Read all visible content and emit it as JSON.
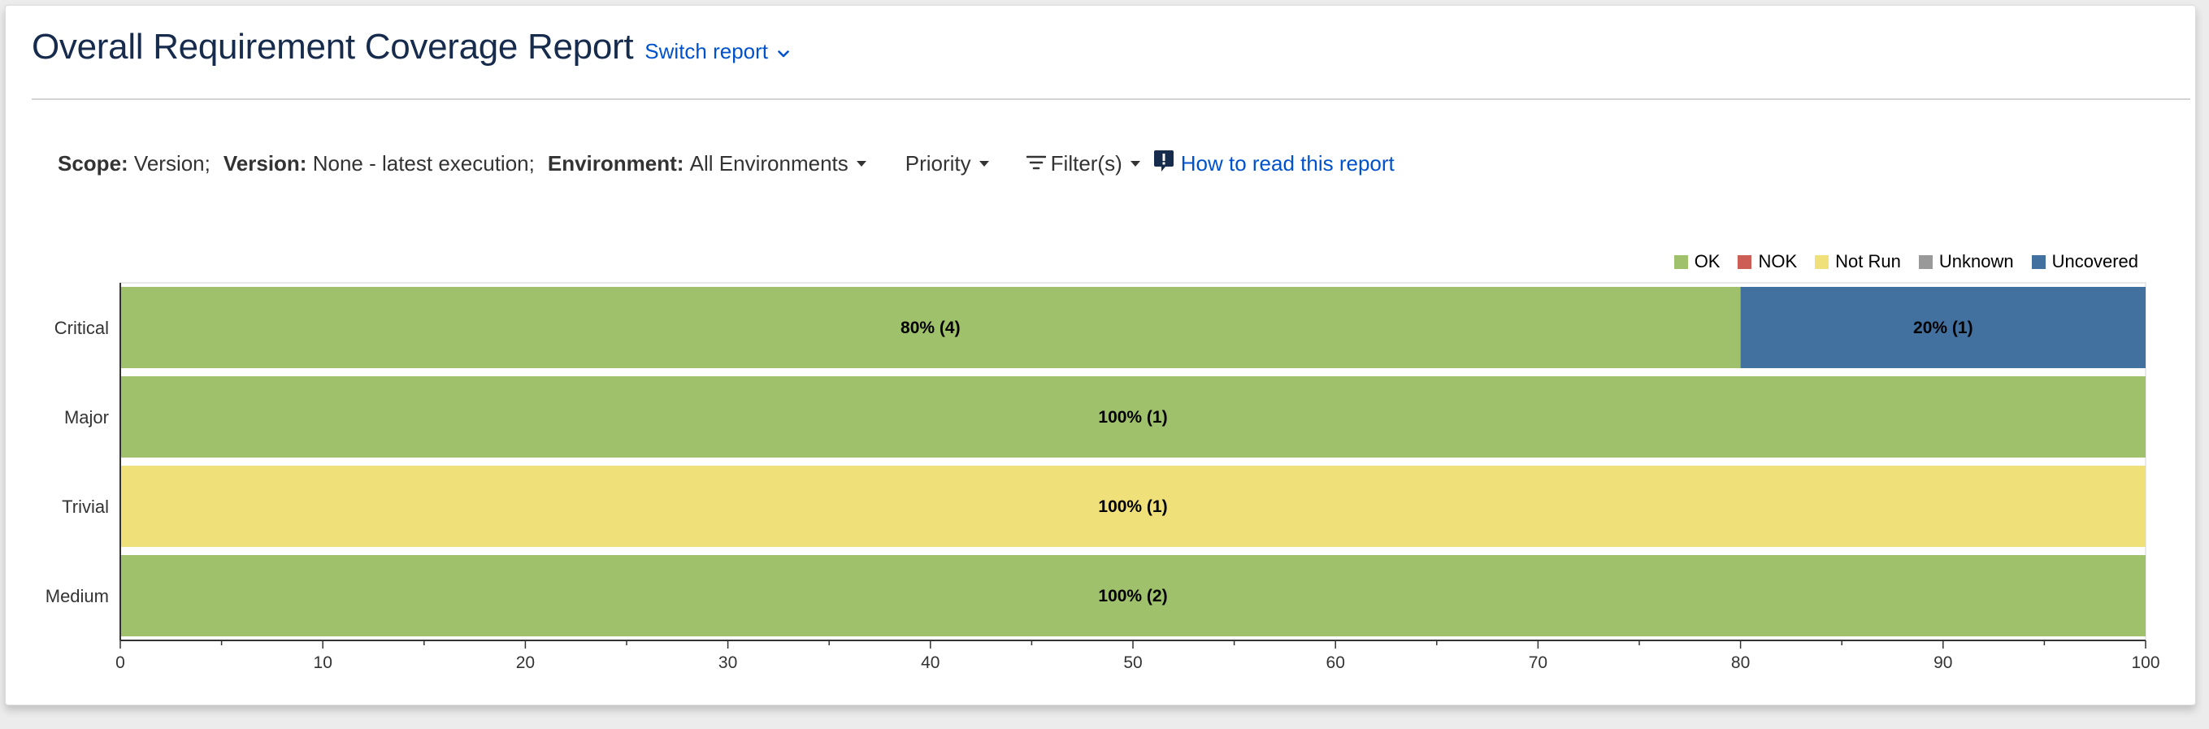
{
  "header": {
    "title": "Overall Requirement Coverage Report",
    "switch_label": "Switch report"
  },
  "scope": {
    "scope_label": "Scope:",
    "scope_value": "Version;",
    "version_label": "Version:",
    "version_value": "None - latest execution;",
    "environment_label": "Environment:",
    "environment_value": "All Environments",
    "priority_label": "Priority",
    "filters_label": "Filter(s)",
    "help_label": "How to read this report"
  },
  "icons": {
    "switch": "chevron-down-icon",
    "filter": "filter-icon",
    "help": "help-icon"
  },
  "colors": {
    "OK": "#9fc16b",
    "NOK": "#cc5e55",
    "Not Run": "#f0e07a",
    "Unknown": "#999999",
    "Uncovered": "#42709f"
  },
  "chart_data": {
    "type": "bar",
    "orientation": "horizontal",
    "stacked": true,
    "categories": [
      "Critical",
      "Major",
      "Trivial",
      "Medium"
    ],
    "series": [
      {
        "name": "OK",
        "values": [
          80,
          100,
          0,
          100
        ],
        "counts": [
          4,
          1,
          0,
          2
        ]
      },
      {
        "name": "NOK",
        "values": [
          0,
          0,
          0,
          0
        ],
        "counts": [
          0,
          0,
          0,
          0
        ]
      },
      {
        "name": "Not Run",
        "values": [
          0,
          0,
          100,
          0
        ],
        "counts": [
          0,
          0,
          1,
          0
        ]
      },
      {
        "name": "Unknown",
        "values": [
          0,
          0,
          0,
          0
        ],
        "counts": [
          0,
          0,
          0,
          0
        ]
      },
      {
        "name": "Uncovered",
        "values": [
          20,
          0,
          0,
          0
        ],
        "counts": [
          1,
          0,
          0,
          0
        ]
      }
    ],
    "data_labels": [
      [
        "80% (4)",
        "",
        "",
        "",
        "20% (1)"
      ],
      [
        "100% (1)",
        "",
        "",
        "",
        ""
      ],
      [
        "",
        "",
        "100% (1)",
        "",
        ""
      ],
      [
        "100% (2)",
        "",
        "",
        "",
        ""
      ]
    ],
    "xlim": [
      0,
      100
    ],
    "xticks": [
      0,
      10,
      20,
      30,
      40,
      50,
      60,
      70,
      80,
      90,
      100
    ],
    "legend_position": "top-right",
    "grid": false
  }
}
